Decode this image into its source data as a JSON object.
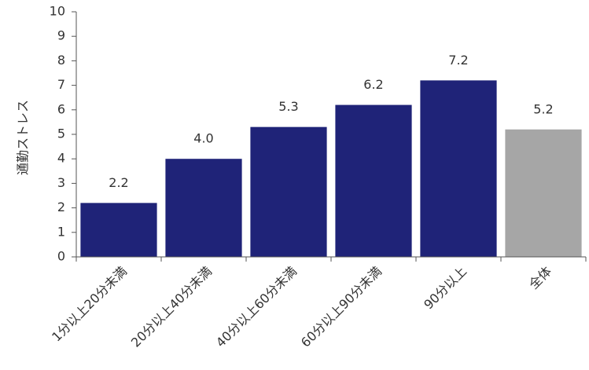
{
  "chart_data": {
    "type": "bar",
    "y_label": "通勤ストレス",
    "categories": [
      "1分以上20分未満",
      "20分以上40分未満",
      "40分以上60分未満",
      "60分以上90分未満",
      "90分以上",
      "全体"
    ],
    "values": [
      2.2,
      4,
      5.3,
      6.2,
      7.2,
      5.2
    ],
    "value_labels": [
      "2.2",
      "4.0",
      "5.3",
      "6.2",
      "7.2",
      "5.2"
    ],
    "colors": [
      "#1f2378",
      "#1f2378",
      "#1f2378",
      "#1f2378",
      "#1f2378",
      "#a6a6a6"
    ],
    "ylim": [
      0,
      10
    ],
    "yticks": [
      0,
      1,
      2,
      3,
      4,
      5,
      6,
      7,
      8,
      9,
      10
    ],
    "grid": false
  }
}
